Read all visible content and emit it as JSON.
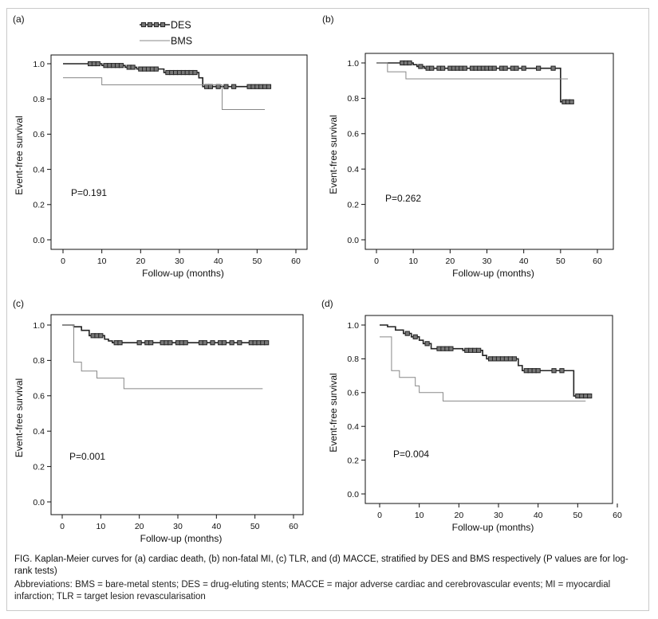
{
  "legend": {
    "des_label": "DES",
    "bms_label": "BMS"
  },
  "chart_data": [
    {
      "type": "line",
      "panel_label": "(a)",
      "xlabel": "Follow-up (months)",
      "ylabel": "Event-free survival",
      "xlim": [
        0,
        60
      ],
      "ylim": [
        0.0,
        1.0
      ],
      "xticks": [
        0,
        10,
        20,
        30,
        40,
        50,
        60
      ],
      "yticks": [
        0.0,
        0.2,
        0.4,
        0.6,
        0.8,
        1.0
      ],
      "ytick_labels": [
        "0.0",
        "0.2",
        "0.4",
        "0.6",
        "0.8",
        "1.0"
      ],
      "annotation": "P=0.191",
      "series": [
        {
          "name": "DES",
          "step": [
            [
              0,
              1.0
            ],
            [
              10,
              0.99
            ],
            [
              16,
              0.98
            ],
            [
              19,
              0.97
            ],
            [
              26,
              0.95
            ],
            [
              35,
              0.92
            ],
            [
              36,
              0.87
            ],
            [
              53,
              0.87
            ]
          ],
          "censor": [
            7,
            8,
            9,
            11,
            12,
            13,
            14,
            15,
            17,
            18,
            20,
            21,
            22,
            23,
            24,
            27,
            28,
            29,
            30,
            31,
            32,
            33,
            34,
            37,
            38,
            40,
            42,
            44,
            48,
            49,
            50,
            51,
            52,
            53
          ]
        },
        {
          "name": "BMS",
          "step": [
            [
              0,
              0.92
            ],
            [
              10,
              0.88
            ],
            [
              41,
              0.74
            ],
            [
              52,
              0.74
            ]
          ],
          "censor": []
        }
      ]
    },
    {
      "type": "line",
      "panel_label": "(b)",
      "xlabel": "Follow-up (months)",
      "ylabel": "Event-free survival",
      "xlim": [
        0,
        60
      ],
      "ylim": [
        0.0,
        1.0
      ],
      "xticks": [
        0,
        10,
        20,
        30,
        40,
        50,
        60
      ],
      "yticks": [
        0.0,
        0.2,
        0.4,
        0.6,
        0.8,
        1.0
      ],
      "ytick_labels": [
        "0.0",
        "0.2",
        "0.4",
        "0.6",
        "0.8",
        "1.0"
      ],
      "annotation": "P=0.262",
      "series": [
        {
          "name": "DES",
          "step": [
            [
              0,
              1.0
            ],
            [
              10,
              0.99
            ],
            [
              11,
              0.98
            ],
            [
              13,
              0.97
            ],
            [
              49,
              0.97
            ],
            [
              50,
              0.78
            ],
            [
              53,
              0.78
            ]
          ],
          "censor": [
            7,
            8,
            9,
            12,
            14,
            15,
            17,
            18,
            20,
            21,
            22,
            23,
            24,
            26,
            27,
            28,
            29,
            30,
            31,
            32,
            34,
            35,
            37,
            38,
            40,
            44,
            48,
            51,
            52,
            53
          ]
        },
        {
          "name": "BMS",
          "step": [
            [
              0,
              1.0
            ],
            [
              3,
              0.95
            ],
            [
              8,
              0.91
            ],
            [
              52,
              0.91
            ]
          ],
          "censor": []
        }
      ]
    },
    {
      "type": "line",
      "panel_label": "(c)",
      "xlabel": "Follow-up (months)",
      "ylabel": "Event-free survival",
      "xlim": [
        0,
        60
      ],
      "ylim": [
        0.0,
        1.0
      ],
      "xticks": [
        0,
        10,
        20,
        30,
        40,
        50,
        60
      ],
      "yticks": [
        0.0,
        0.2,
        0.4,
        0.6,
        0.8,
        1.0
      ],
      "ytick_labels": [
        "0.0",
        "0.2",
        "0.4",
        "0.6",
        "0.8",
        "1.0"
      ],
      "annotation": "P=0.001",
      "series": [
        {
          "name": "DES",
          "step": [
            [
              0,
              1.0
            ],
            [
              3,
              0.99
            ],
            [
              5,
              0.97
            ],
            [
              7,
              0.94
            ],
            [
              11,
              0.92
            ],
            [
              12,
              0.91
            ],
            [
              13,
              0.9
            ],
            [
              53,
              0.9
            ]
          ],
          "censor": [
            8,
            9,
            10,
            14,
            15,
            20,
            22,
            23,
            26,
            27,
            28,
            30,
            31,
            32,
            36,
            37,
            39,
            41,
            42,
            44,
            46,
            49,
            50,
            51,
            52,
            53
          ]
        },
        {
          "name": "BMS",
          "step": [
            [
              0,
              1.0
            ],
            [
              3,
              0.79
            ],
            [
              5,
              0.74
            ],
            [
              9,
              0.7
            ],
            [
              16,
              0.64
            ],
            [
              52,
              0.64
            ]
          ],
          "censor": []
        }
      ]
    },
    {
      "type": "line",
      "panel_label": "(d)",
      "xlabel": "Follow-up (months)",
      "ylabel": "Event-free survival",
      "xlim": [
        0,
        60
      ],
      "ylim": [
        0.0,
        1.0
      ],
      "xticks": [
        0,
        10,
        20,
        30,
        40,
        50,
        60
      ],
      "yticks": [
        0.0,
        0.2,
        0.4,
        0.6,
        0.8,
        1.0
      ],
      "ytick_labels": [
        "0.0",
        "0.2",
        "0.4",
        "0.6",
        "0.8",
        "1.0"
      ],
      "annotation": "P=0.004",
      "series": [
        {
          "name": "DES",
          "step": [
            [
              0,
              1.0
            ],
            [
              2,
              0.99
            ],
            [
              4,
              0.97
            ],
            [
              6,
              0.95
            ],
            [
              8,
              0.93
            ],
            [
              10,
              0.91
            ],
            [
              11,
              0.89
            ],
            [
              13,
              0.86
            ],
            [
              21,
              0.85
            ],
            [
              26,
              0.82
            ],
            [
              27,
              0.8
            ],
            [
              35,
              0.76
            ],
            [
              36,
              0.73
            ],
            [
              49,
              0.58
            ],
            [
              53,
              0.58
            ]
          ],
          "censor": [
            7,
            9,
            12,
            15,
            16,
            17,
            18,
            22,
            23,
            24,
            25,
            28,
            29,
            30,
            31,
            32,
            33,
            34,
            37,
            38,
            39,
            40,
            44,
            46,
            50,
            51,
            52,
            53
          ]
        },
        {
          "name": "BMS",
          "step": [
            [
              0,
              0.93
            ],
            [
              3,
              0.73
            ],
            [
              5,
              0.69
            ],
            [
              9,
              0.64
            ],
            [
              10,
              0.6
            ],
            [
              16,
              0.55
            ],
            [
              52,
              0.55
            ]
          ],
          "censor": []
        }
      ]
    }
  ],
  "caption": {
    "title": "FIG.  Kaplan-Meier curves for (a) cardiac death, (b) non-fatal MI, (c) TLR, and (d) MACCE, stratified by DES and BMS respectively (P values are for log-rank tests)",
    "abbreviations": "Abbreviations: BMS = bare-metal stents; DES = drug-eluting stents; MACCE = major adverse cardiac and cerebrovascular events; MI = myocardial infarction; TLR = target lesion revascularisation"
  },
  "colors": {
    "des_line": "#222222",
    "des_marker_fill": "#777777",
    "bms_line": "#888888",
    "axis": "#111111",
    "frame": "#c9c9c9"
  }
}
